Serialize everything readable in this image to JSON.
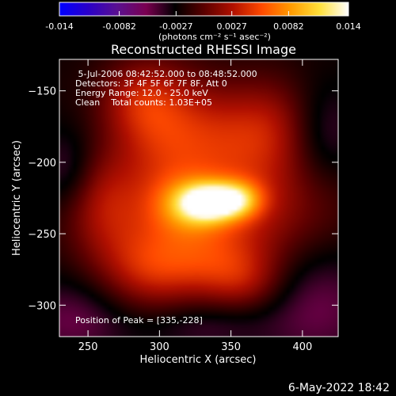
{
  "footer": {
    "date": "6-May-2022 18:42"
  },
  "colorbar": {
    "ticks": [
      "-0.014",
      "-0.0082",
      "-0.0027",
      "0.0027",
      "0.0082",
      "0.014"
    ],
    "unit_html": "(photons cm⁻² s⁻¹ asec⁻²)",
    "colors": [
      "#0000ff",
      "#2a00c8",
      "#5a1090",
      "#7a0050",
      "#000000",
      "#5a0000",
      "#b01000",
      "#ff4a00",
      "#ff9a00",
      "#ffe03a",
      "#ffffff"
    ]
  },
  "chart_data": {
    "type": "heatmap",
    "title": "Reconstructed RHESSI Image",
    "xlabel": "Heliocentric X (arcsec)",
    "ylabel": "Heliocentric Y (arcsec)",
    "xlim": [
      230,
      425
    ],
    "ylim": [
      -322,
      -128
    ],
    "xticks": [
      250,
      300,
      350,
      400
    ],
    "yticks": [
      -150,
      -200,
      -250,
      -300
    ],
    "annotations": [
      " 5-Jul-2006 08:42:52.000 to 08:48:52.000",
      "Detectors: 3F 4F 5F 6F 7F 8F, Att 0",
      "Energy Range: 12.0 - 25.0 keV",
      "Clean    Total counts: 1.03E+05"
    ],
    "peak_label": "Position of Peak = [335,-228]",
    "peak": [
      335,
      -228
    ],
    "colorbar_range": [
      -0.014,
      0.014
    ],
    "sources": [
      {
        "x": 335,
        "y": -228,
        "sx": 14,
        "sy": 9,
        "amp": 0.0105
      },
      {
        "x": 355,
        "y": -226,
        "sx": 12,
        "sy": 9,
        "amp": 0.007
      },
      {
        "x": 320,
        "y": -230,
        "sx": 18,
        "sy": 14,
        "amp": 0.005
      },
      {
        "x": 340,
        "y": -232,
        "sx": 55,
        "sy": 28,
        "amp": 0.0055
      },
      {
        "x": 300,
        "y": -175,
        "sx": 25,
        "sy": 30,
        "amp": 0.0045
      },
      {
        "x": 285,
        "y": -155,
        "sx": 20,
        "sy": 18,
        "amp": 0.003
      },
      {
        "x": 345,
        "y": -180,
        "sx": 30,
        "sy": 25,
        "amp": 0.004
      },
      {
        "x": 380,
        "y": -175,
        "sx": 22,
        "sy": 25,
        "amp": 0.003
      },
      {
        "x": 290,
        "y": -275,
        "sx": 25,
        "sy": 22,
        "amp": 0.0045
      },
      {
        "x": 335,
        "y": -270,
        "sx": 30,
        "sy": 18,
        "amp": 0.004
      },
      {
        "x": 360,
        "y": -285,
        "sx": 20,
        "sy": 15,
        "amp": 0.003
      },
      {
        "x": 260,
        "y": -230,
        "sx": 18,
        "sy": 25,
        "amp": 0.003
      },
      {
        "x": 240,
        "y": -310,
        "sx": 30,
        "sy": 20,
        "amp": -0.003
      },
      {
        "x": 410,
        "y": -300,
        "sx": 30,
        "sy": 30,
        "amp": -0.003
      },
      {
        "x": 415,
        "y": -180,
        "sx": 18,
        "sy": 25,
        "amp": -0.0025
      },
      {
        "x": 235,
        "y": -205,
        "sx": 14,
        "sy": 20,
        "amp": -0.0025
      },
      {
        "x": 330,
        "y": -315,
        "sx": 30,
        "sy": 12,
        "amp": -0.002
      }
    ]
  }
}
